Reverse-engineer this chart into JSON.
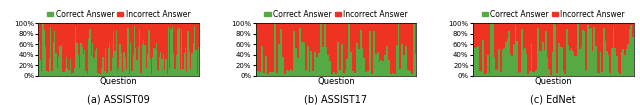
{
  "n_bars_assist09": 123,
  "n_bars_assist17": 85,
  "n_bars_ednet": 100,
  "correct_color": "#55AA44",
  "incorrect_color": "#EE3322",
  "legend_labels": [
    "Correct Answer",
    "Incorrect Answer"
  ],
  "xlabel": "Question",
  "ylim": [
    0,
    1
  ],
  "yticks": [
    0,
    0.2,
    0.4,
    0.6,
    0.8,
    1.0
  ],
  "ytick_labels": [
    "0%",
    "20%",
    "40%",
    "60%",
    "80%",
    "100%"
  ],
  "subtitle_a": "(a) ASSIST09",
  "subtitle_b": "(b) ASSIST17",
  "subtitle_c": "(c) EdNet",
  "seed_a": 7,
  "seed_b": 15,
  "seed_c": 31,
  "bar_width": 1.0,
  "legend_fontsize": 5.5,
  "tick_fontsize": 5,
  "label_fontsize": 6,
  "subtitle_fontsize": 7,
  "bg_color": "#ffffff",
  "fig_width": 6.4,
  "fig_height": 1.05
}
